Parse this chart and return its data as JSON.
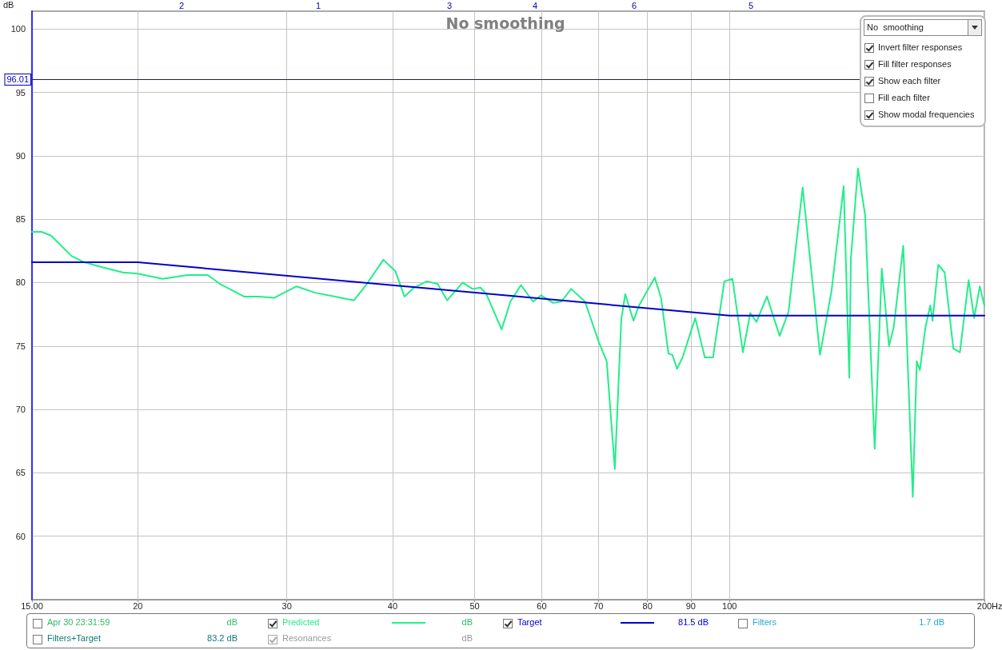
{
  "chart_data": {
    "type": "line",
    "title": "No smoothing",
    "ylabel": "dB",
    "xlabel": "Hz",
    "log": "x",
    "grid": true,
    "legend": "bottom",
    "marker": "none",
    "line_style": "solid",
    "xlim": [
      15,
      200
    ],
    "xticks": [
      {
        "value": 15,
        "label": "15.00"
      },
      20,
      30,
      40,
      50,
      60,
      70,
      80,
      90,
      100,
      200
    ],
    "ylim": [
      55,
      101.4
    ],
    "yticks": [
      60,
      65,
      70,
      75,
      80,
      85,
      90,
      95,
      100
    ],
    "ref_lines": [
      {
        "axis": "y",
        "value": 96.01,
        "label": "96.01",
        "color": "#1a1a6e"
      }
    ],
    "series": [
      {
        "name": "Predicted",
        "color": "#22ee88",
        "x": [
          15.0,
          15.4,
          15.8,
          16.7,
          17.3,
          18.2,
          19.2,
          20.0,
          21.4,
          22.9,
          24.2,
          25.0,
          26.7,
          27.8,
          29.0,
          30.8,
          32.4,
          34.2,
          36.0,
          37.3,
          39.0,
          40.3,
          41.3,
          42.4,
          43.9,
          45.2,
          46.4,
          48.4,
          49.7,
          50.8,
          51.6,
          53.8,
          55.1,
          56.7,
          58.6,
          59.9,
          61.9,
          63.3,
          65.0,
          67.5,
          70.0,
          71.6,
          73.2,
          74.5,
          75.3,
          77.0,
          78.2,
          81.6,
          83.0,
          84.7,
          85.6,
          86.7,
          88.0,
          91.1,
          93.5,
          95.6,
          98.6,
          100.8,
          103.7,
          105.8,
          107.6,
          110.7,
          114.6,
          117.4,
          122.0,
          127.9,
          132.0,
          136.4,
          138.5,
          139.1,
          141.8,
          144.6,
          148.4,
          151.3,
          154.3,
          156.3,
          160.4,
          164.6,
          166.4,
          167.8,
          170.4,
          172.6,
          173.7,
          176.4,
          179.5,
          183.8,
          187.1,
          191.6,
          194.5,
          197.5,
          200
        ],
        "values": [
          84.0,
          84.0,
          83.7,
          82.1,
          81.6,
          81.2,
          80.8,
          80.7,
          80.3,
          80.6,
          80.6,
          79.9,
          78.9,
          78.9,
          78.8,
          79.7,
          79.2,
          78.9,
          78.6,
          79.9,
          81.8,
          80.9,
          78.9,
          79.6,
          80.1,
          79.9,
          78.6,
          80.0,
          79.5,
          79.6,
          79.1,
          76.3,
          78.5,
          79.8,
          78.5,
          79.0,
          78.4,
          78.5,
          79.5,
          78.5,
          75.4,
          73.8,
          65.3,
          77.1,
          79.1,
          77.0,
          78.2,
          80.4,
          78.8,
          74.4,
          74.3,
          73.2,
          74.1,
          77.2,
          74.1,
          74.1,
          80.1,
          80.3,
          74.5,
          77.6,
          76.9,
          78.9,
          75.8,
          77.7,
          87.5,
          74.3,
          79.4,
          87.6,
          72.5,
          81.9,
          89.0,
          85.3,
          66.9,
          81.1,
          75.0,
          76.5,
          82.9,
          63.1,
          73.8,
          73.1,
          76.5,
          78.2,
          77.0,
          81.4,
          80.8,
          74.8,
          74.5,
          80.2,
          77.2,
          79.7,
          78.2
        ]
      },
      {
        "name": "Target",
        "color": "#0000cc",
        "x": [
          15,
          20,
          100,
          200
        ],
        "values": [
          81.6,
          81.6,
          77.4,
          77.4
        ]
      }
    ],
    "annotations": [
      "No  smoothing",
      "Invert filter responses",
      "Fill filter responses",
      "Show each filter",
      "Fill each filter",
      "Show modal frequencies",
      "Apr 30 23:31:59",
      "dB",
      "dB",
      "81.5 dB",
      "Filters",
      "1.7 dB",
      "Filters+Target",
      "83.2 dB",
      "Resonances",
      "dB",
      "2",
      "1",
      "3",
      "4",
      "6",
      "5"
    ]
  }
}
